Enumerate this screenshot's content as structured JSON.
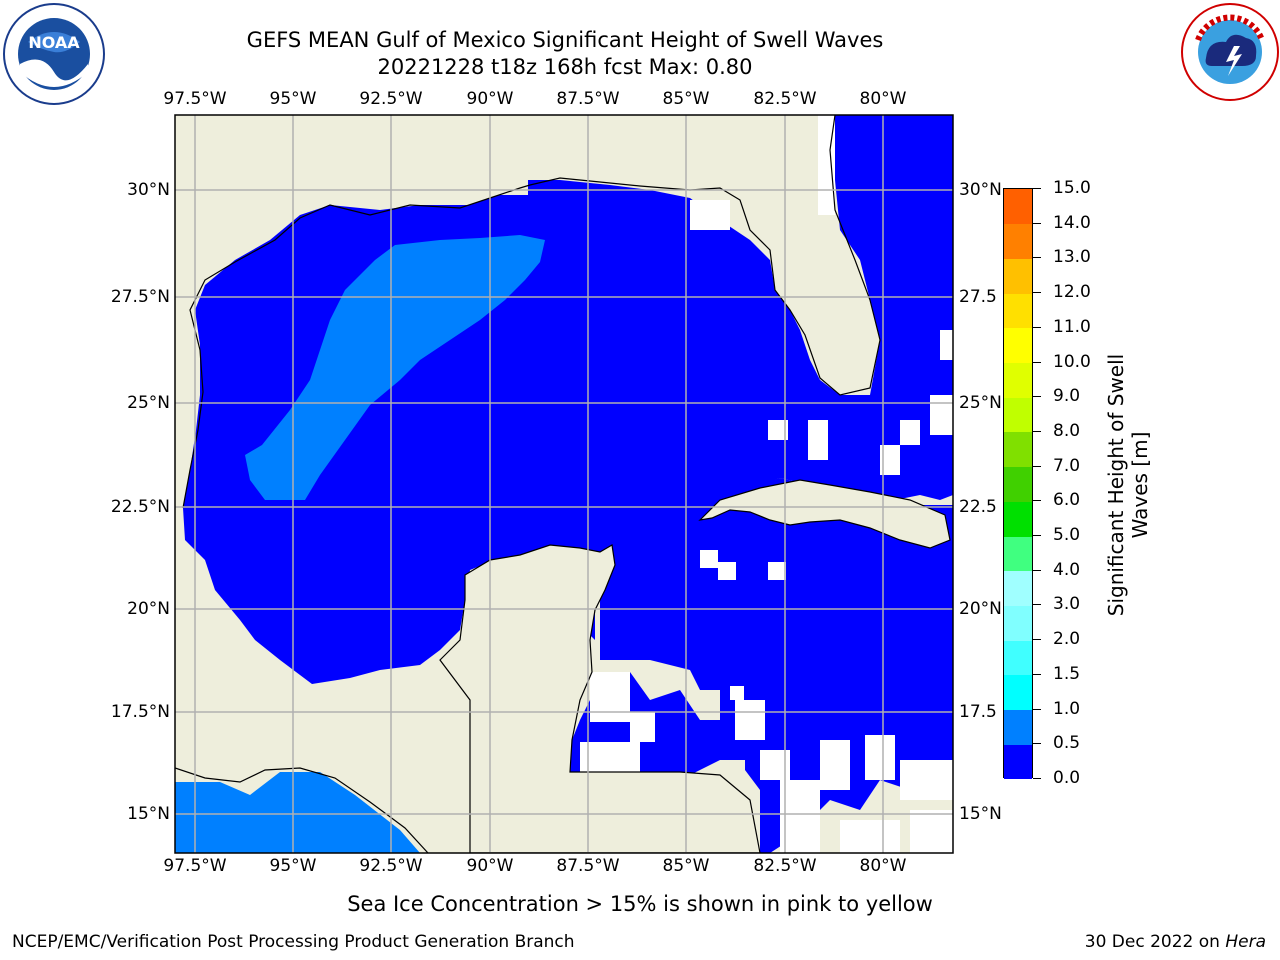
{
  "title": {
    "line1": "GEFS MEAN Gulf of Mexico Significant Height of Swell Waves",
    "line2": "20221228 t18z 168h fcst   Max: 0.80"
  },
  "logos": {
    "left": "noaa-logo",
    "right": "nws-logo"
  },
  "map": {
    "lon_labels": [
      "97.5°W",
      "95°W",
      "92.5°W",
      "90°W",
      "87.5°W",
      "85°W",
      "82.5°W",
      "80°W"
    ],
    "lat_labels_left": [
      "30°N",
      "27.5°N",
      "25°N",
      "22.5°N",
      "20°N",
      "17.5°N",
      "15°N"
    ],
    "lat_labels_right": [
      "30°N",
      "27.5",
      "25°N",
      "22.5",
      "20°N",
      "17.5",
      "15°N"
    ],
    "lon_range": [
      -98,
      -78.2
    ],
    "lat_range": [
      14,
      31.8
    ],
    "colors": {
      "land": "#eeeedc",
      "ocean_low": "#0000ff",
      "ocean_mid": "#0080ff",
      "grid": "#b0b0b0"
    }
  },
  "colorbar": {
    "title": "Significant Height of Swell Waves [m]",
    "labels": [
      "15.0",
      "14.0",
      "13.0",
      "12.0",
      "11.0",
      "10.0",
      "9.0",
      "8.0",
      "7.0",
      "6.0",
      "5.0",
      "4.0",
      "3.0",
      "2.0",
      "1.5",
      "1.0",
      "0.5",
      "0.0"
    ],
    "colors": [
      "#0000ff",
      "#0080ff",
      "#00ffff",
      "#40ffff",
      "#80ffff",
      "#a0ffff",
      "#40ff80",
      "#00e000",
      "#40d000",
      "#80e000",
      "#c0ff00",
      "#e0ff00",
      "#ffff00",
      "#ffe000",
      "#ffc000",
      "#ff8000",
      "#ff6000",
      "#ff3000",
      "#ff0000"
    ]
  },
  "note": "Sea Ice Concentration > 15% is shown in pink to yellow",
  "footer": {
    "left": "NCEP/EMC/Verification Post Processing Product Generation Branch",
    "right_prefix": "30 Dec 2022 on ",
    "right_host": "Hera"
  }
}
